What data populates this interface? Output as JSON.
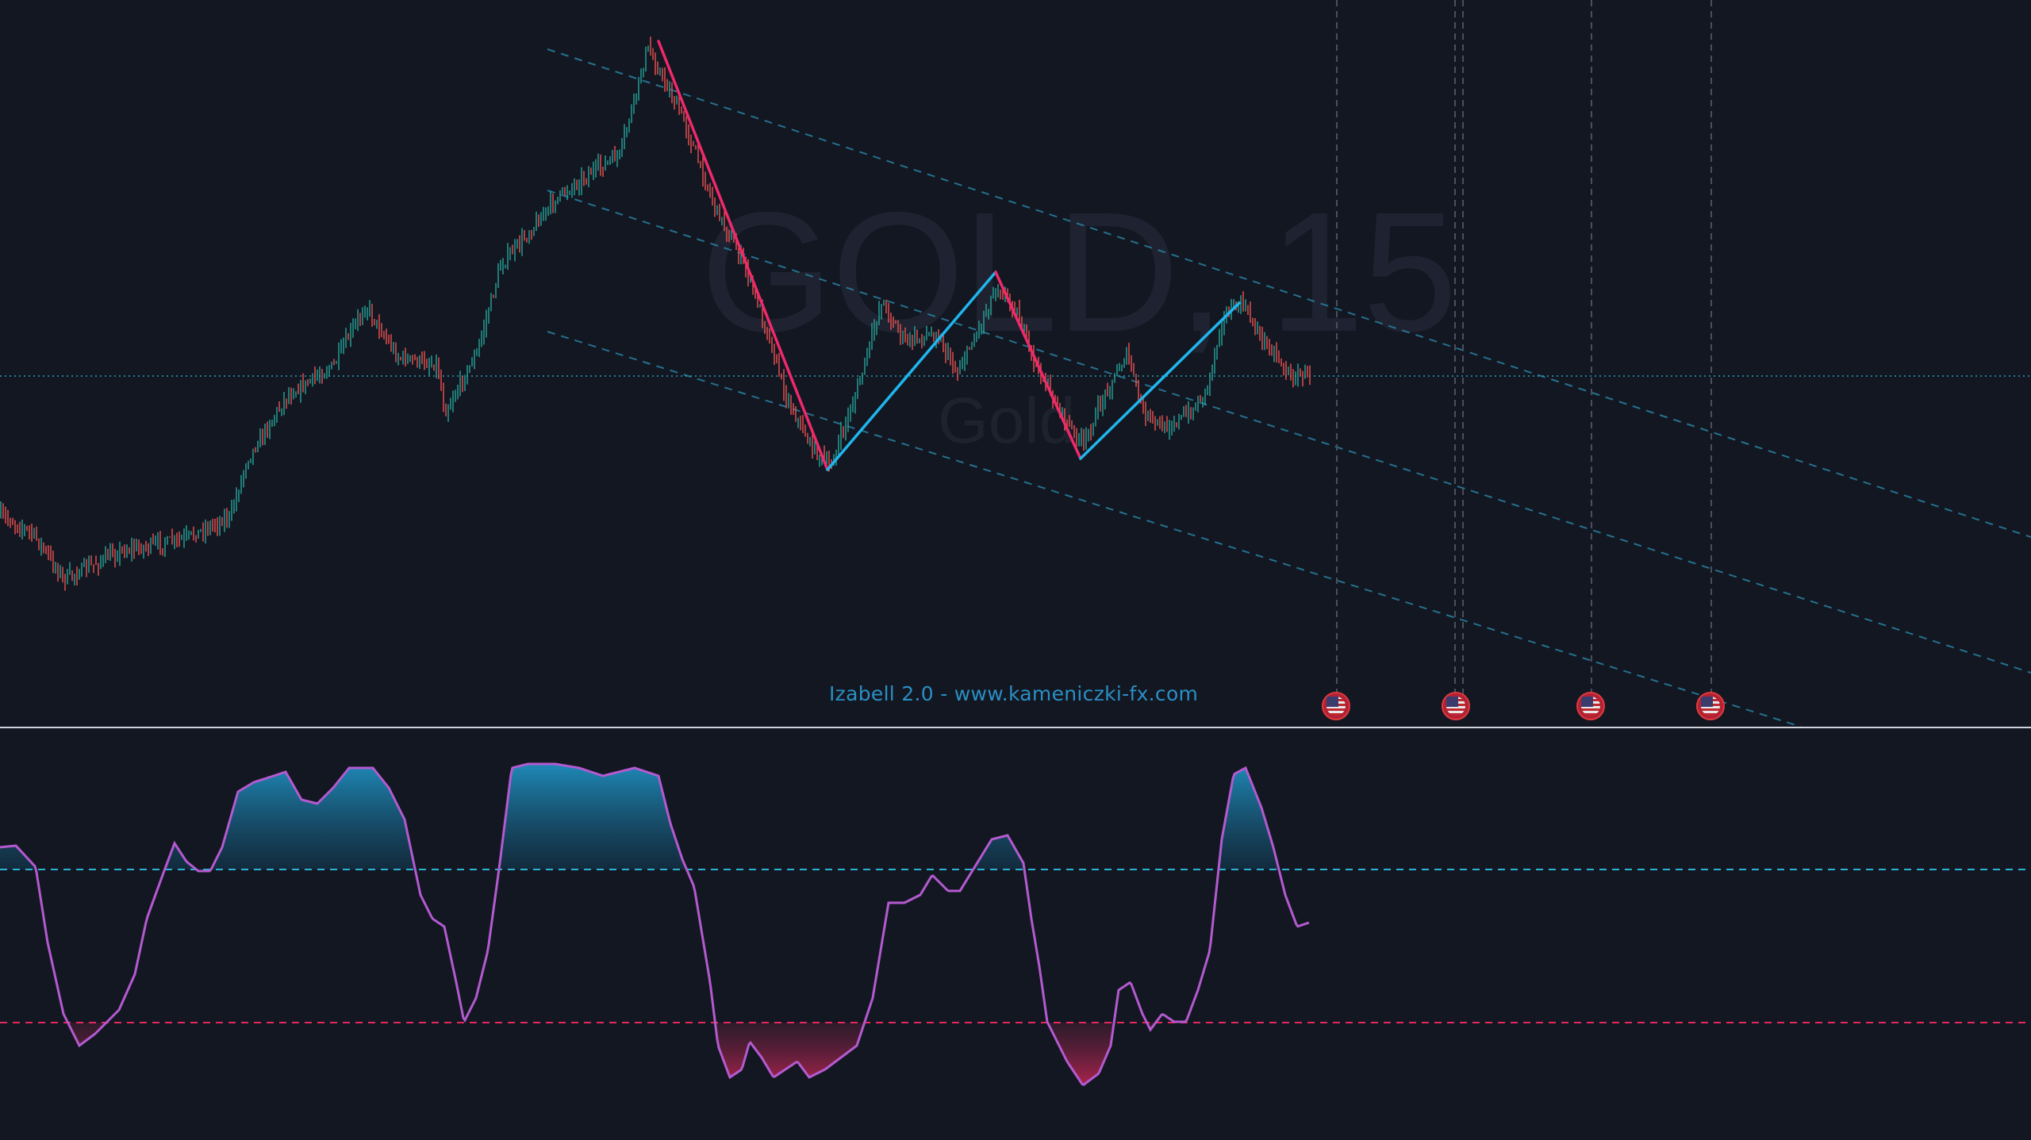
{
  "chart": {
    "watermark_symbol": "GOLD, 15",
    "watermark_description": "Gold",
    "indicator_name": "Izabell 2.0 - www.kameniczki-fx.com",
    "candle_up_color": "#26a69a",
    "candle_down_color": "#ef5350",
    "zigzag_up_color": "#1fb6ee",
    "zigzag_down_color": "#f0296b",
    "channel_color": "#2a87a8",
    "upper_level_color": "#2ab3d6",
    "lower_level_color": "#e8275e",
    "oscillator_line_color": "#b45ad0"
  },
  "event_markers": [
    {
      "icon": "us-flag-icon",
      "count": 1
    },
    {
      "icon": "us-flag-icon",
      "count": 2
    },
    {
      "icon": "us-flag-icon",
      "count": 1
    },
    {
      "icon": "us-flag-icon",
      "count": 1
    }
  ]
}
